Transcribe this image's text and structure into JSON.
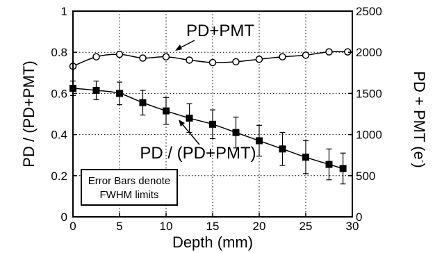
{
  "chart_data": {
    "type": "line",
    "xlabel": "Depth (mm)",
    "ylabel_left": "PD / (PD+PMT)",
    "ylabel_right": "PD + PMT (e",
    "ylabel_right_sup": "-",
    "ylabel_right_close": ")",
    "xlim": [
      0,
      30
    ],
    "ylim_left": [
      0,
      1
    ],
    "ylim_right": [
      0,
      2500
    ],
    "x_ticks": [
      "0",
      "5",
      "10",
      "15",
      "20",
      "25",
      "30"
    ],
    "y_left_ticks": [
      "0",
      "0.2",
      "0.4",
      "0.6",
      "0.8",
      "1"
    ],
    "y_right_ticks": [
      "0",
      "500",
      "1000",
      "1500",
      "2000",
      "2500"
    ],
    "grid": true,
    "series": [
      {
        "name": "PD+PMT",
        "axis": "right",
        "marker": "open-circle",
        "x": [
          0,
          2.5,
          5,
          7.5,
          10,
          12.5,
          15,
          17.5,
          20,
          22.5,
          25,
          27.5,
          29.5
        ],
        "y": [
          1830,
          1945,
          1975,
          1930,
          1945,
          1905,
          1875,
          1885,
          1915,
          1945,
          1965,
          2005,
          2005
        ]
      },
      {
        "name": "PD / (PD+PMT)",
        "axis": "left",
        "marker": "filled-square",
        "x": [
          0,
          2.5,
          5,
          7.5,
          10,
          12.5,
          15,
          17.5,
          20,
          22.5,
          25,
          27.5,
          29
        ],
        "y": [
          0.625,
          0.615,
          0.6,
          0.555,
          0.515,
          0.48,
          0.45,
          0.41,
          0.37,
          0.33,
          0.29,
          0.255,
          0.235
        ],
        "error": [
          0.035,
          0.045,
          0.055,
          0.06,
          0.065,
          0.07,
          0.07,
          0.075,
          0.075,
          0.08,
          0.08,
          0.075,
          0.075
        ]
      }
    ],
    "annotations": {
      "pdpmt_label": "PD+PMT",
      "ratio_label": "PD / (PD+PMT)",
      "box_line1": "Error Bars denote",
      "box_line2": "FWHM limits"
    }
  }
}
